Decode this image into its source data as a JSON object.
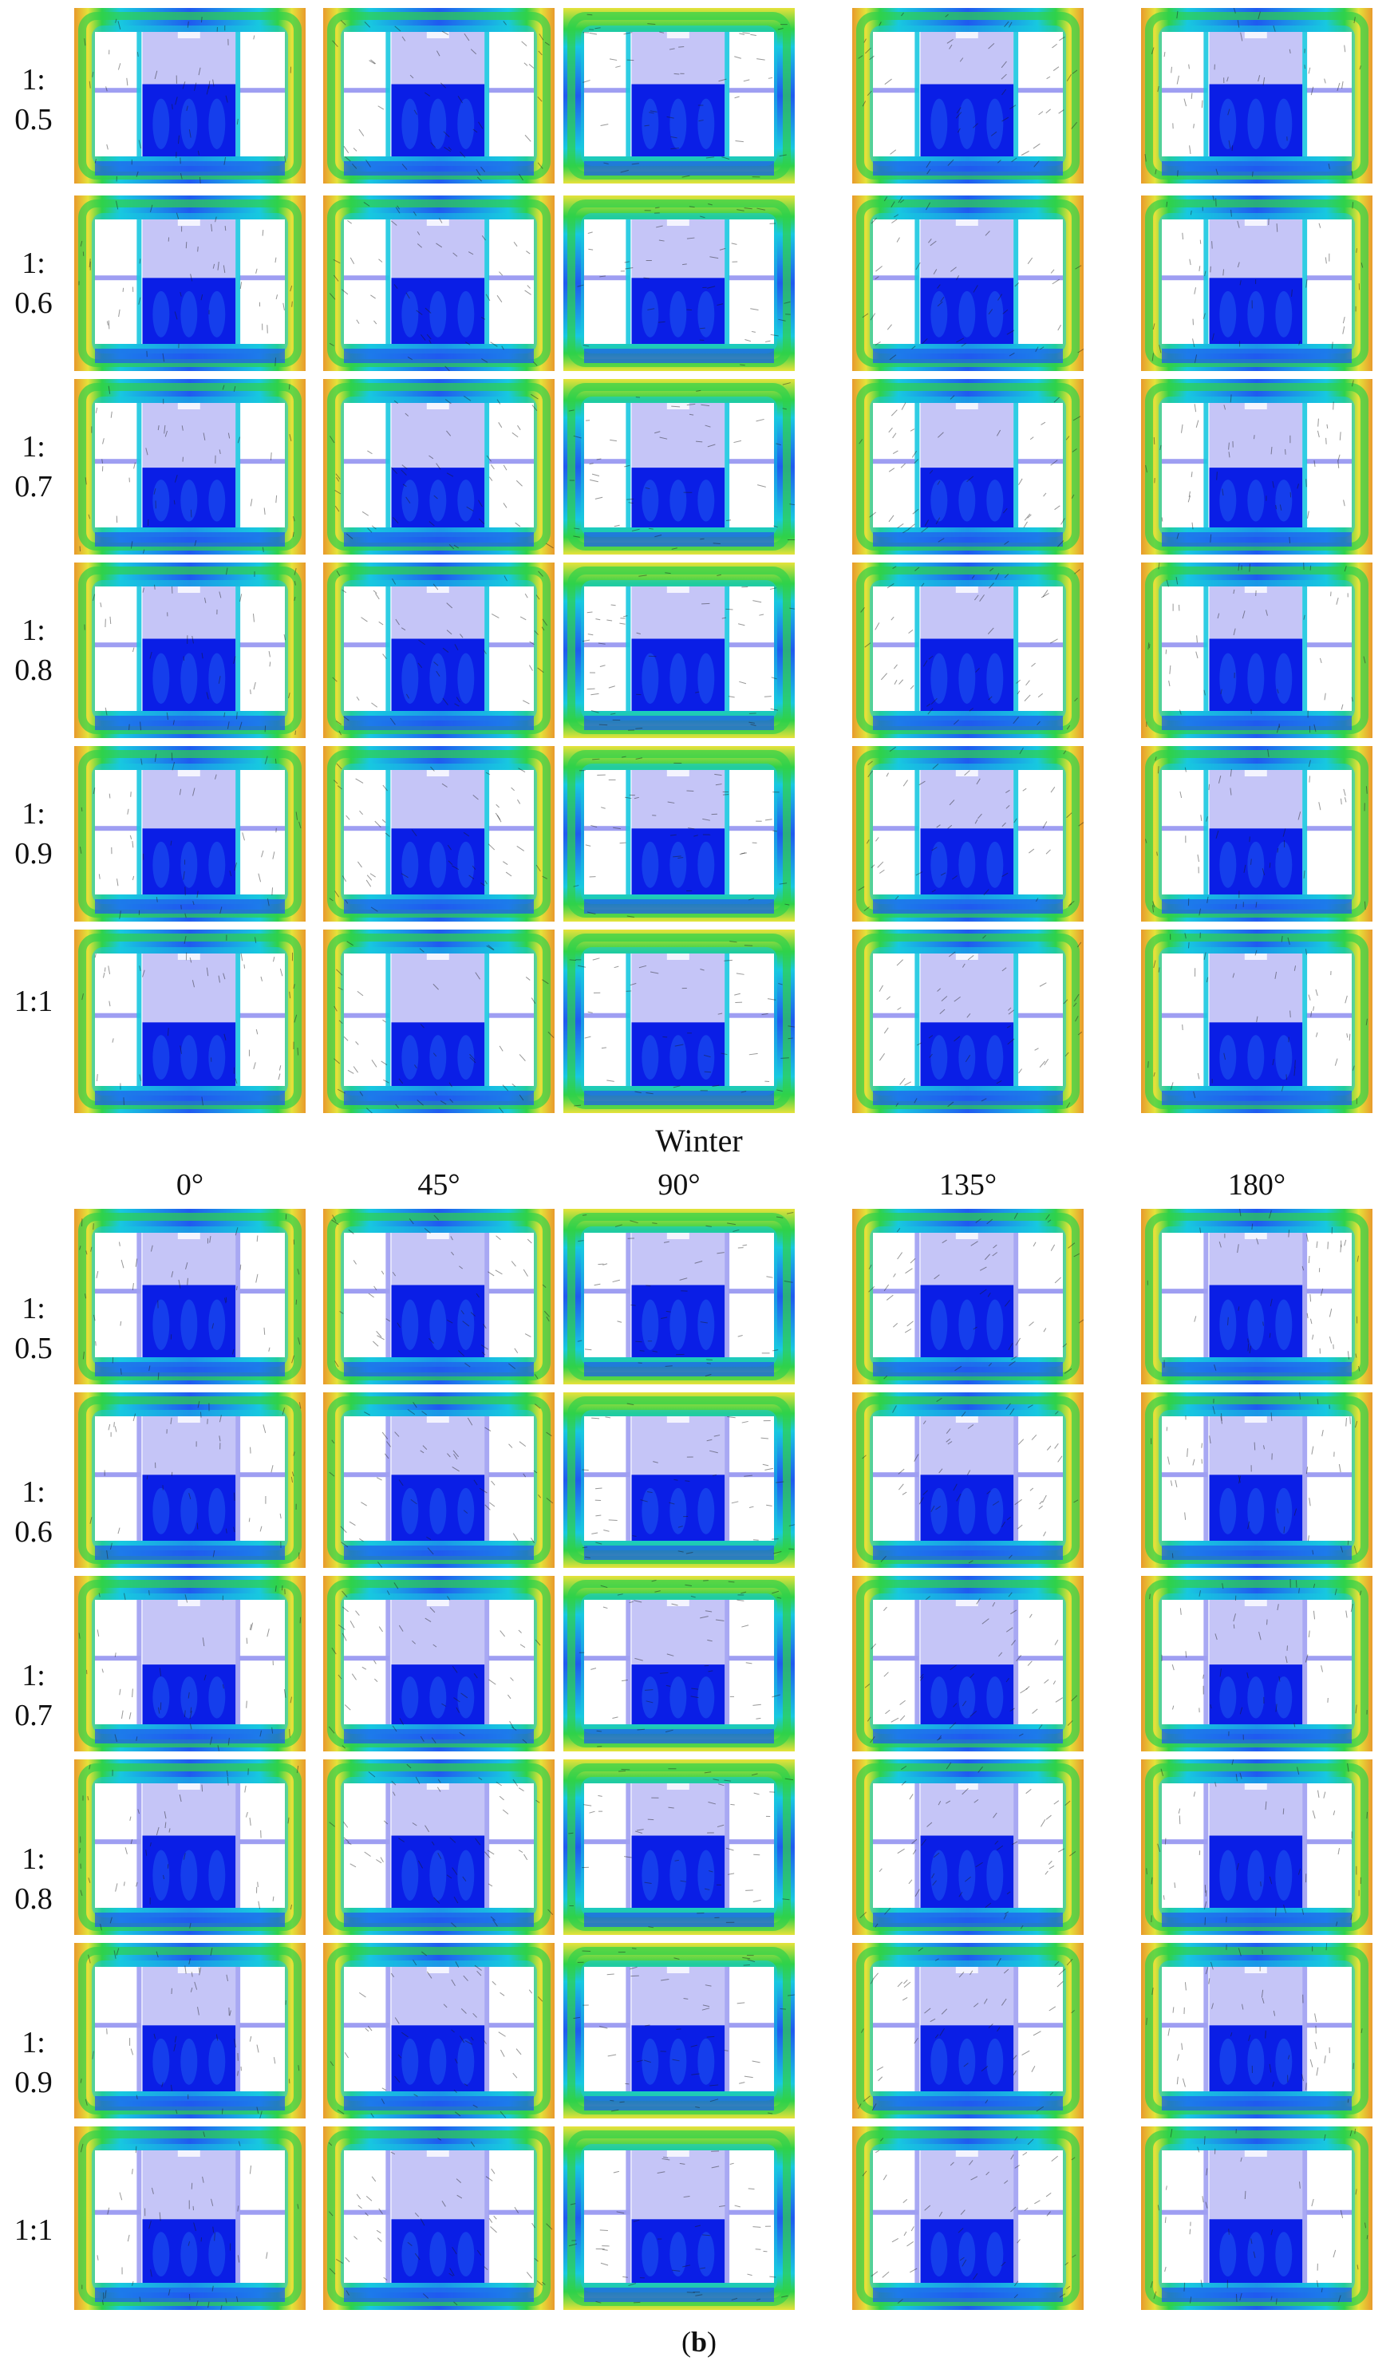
{
  "figure": {
    "section_top_title": "Winter",
    "caption_open": "(",
    "caption_label": "b",
    "caption_close": ")",
    "angles": [
      "0°",
      "45°",
      "90°",
      "135°",
      "180°"
    ],
    "ratios_top": [
      [
        "1:",
        "0.5"
      ],
      [
        "1:",
        "0.6"
      ],
      [
        "1:",
        "0.7"
      ],
      [
        "1:",
        "0.8"
      ],
      [
        "1:",
        "0.9"
      ],
      [
        "1:1",
        ""
      ]
    ],
    "ratios_bottom": [
      [
        "1:",
        "0.5"
      ],
      [
        "1:",
        "0.6"
      ],
      [
        "1:",
        "0.7"
      ],
      [
        "1:",
        "0.8"
      ],
      [
        "1:",
        "0.9"
      ],
      [
        "1:1",
        ""
      ]
    ]
  },
  "colors": {
    "deep_blue": "#0a1ee6",
    "mid_blue": "#1f5af0",
    "cyan": "#18c8e0",
    "green": "#2fd24a",
    "yellow": "#e6e23a",
    "orange": "#e89a2c",
    "building": "#9e9ef2",
    "courtyard": "#ffffff"
  }
}
